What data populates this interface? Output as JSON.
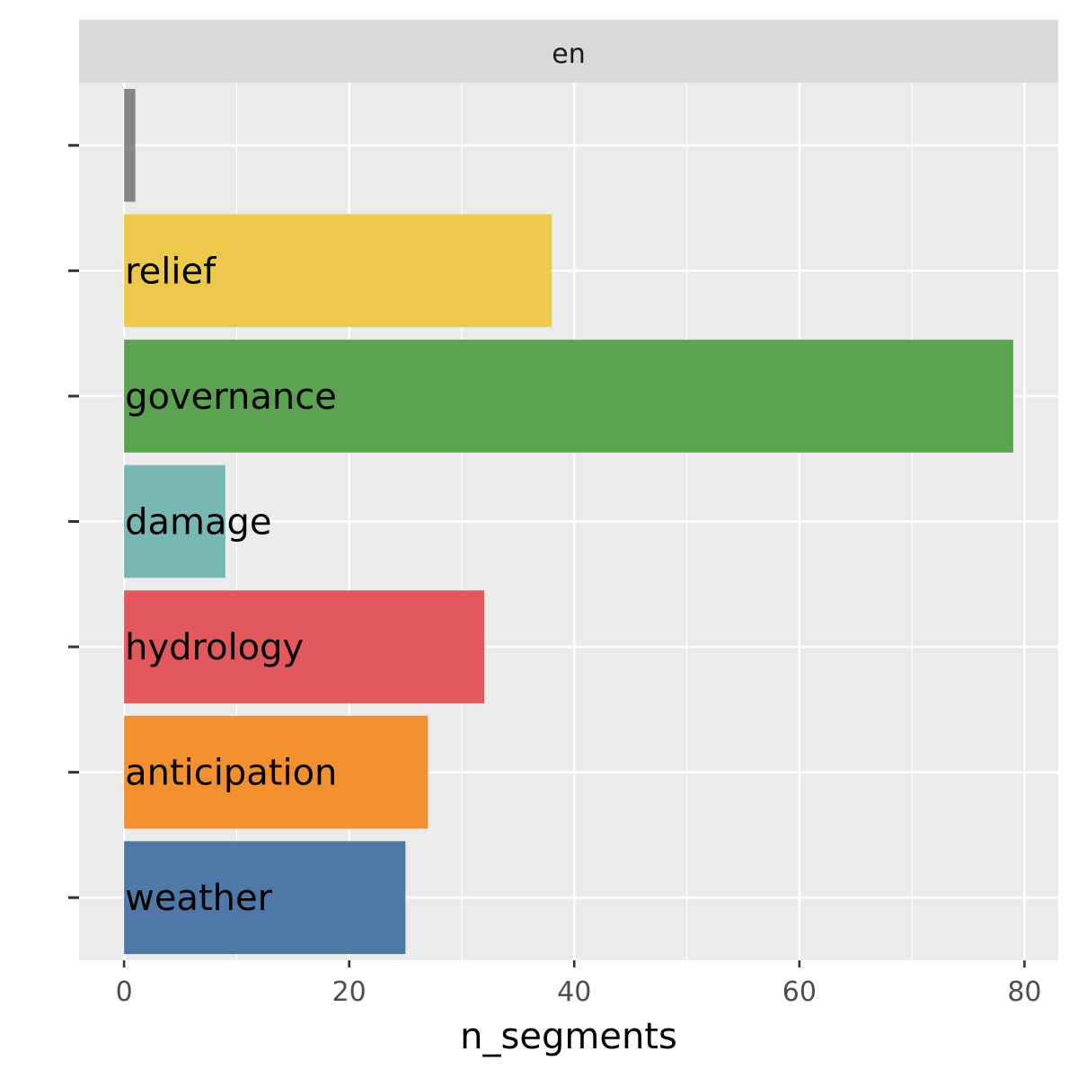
{
  "chart_data": {
    "type": "bar",
    "orientation": "horizontal",
    "facet_label": "en",
    "categories": [
      "",
      "relief",
      "governance",
      "damage",
      "hydrology",
      "anticipation",
      "weather"
    ],
    "values": [
      1,
      38,
      79,
      9,
      32,
      27,
      25
    ],
    "colors": [
      "#868686",
      "#ECC94A",
      "#5BA351",
      "#79B7B2",
      "#E2585B",
      "#F28F2F",
      "#4E78A6"
    ],
    "xlabel": "n_segments",
    "ylabel": "",
    "xlim": [
      -4,
      83
    ],
    "x_ticks": [
      "0",
      "20",
      "40",
      "60",
      "80"
    ],
    "grid": true,
    "legend": "none"
  }
}
